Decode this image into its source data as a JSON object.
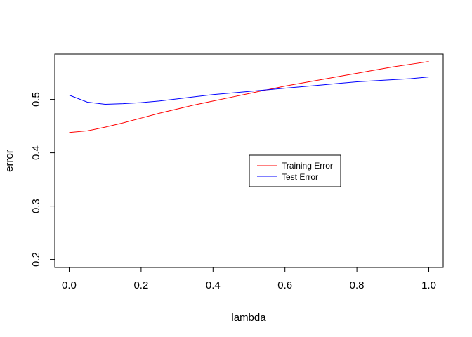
{
  "chart_data": {
    "type": "line",
    "title": "",
    "xlabel": "lambda",
    "ylabel": "error",
    "xlim": [
      -0.04,
      1.04
    ],
    "ylim": [
      0.185,
      0.585
    ],
    "x_ticks": [
      0.0,
      0.2,
      0.4,
      0.6,
      0.8,
      1.0
    ],
    "x_tick_labels": [
      "0.0",
      "0.2",
      "0.4",
      "0.6",
      "0.8",
      "1.0"
    ],
    "y_ticks": [
      0.2,
      0.3,
      0.4,
      0.5
    ],
    "y_tick_labels": [
      "0.2",
      "0.3",
      "0.4",
      "0.5"
    ],
    "grid": false,
    "legend_position": "center-right",
    "x": [
      0.0,
      0.05,
      0.1,
      0.15,
      0.2,
      0.25,
      0.3,
      0.35,
      0.4,
      0.45,
      0.5,
      0.55,
      0.6,
      0.65,
      0.7,
      0.75,
      0.8,
      0.85,
      0.9,
      0.95,
      1.0
    ],
    "series": [
      {
        "name": "Training Error",
        "color": "#ff0000",
        "values": [
          0.438,
          0.441,
          0.448,
          0.456,
          0.465,
          0.474,
          0.482,
          0.49,
          0.497,
          0.504,
          0.511,
          0.518,
          0.525,
          0.531,
          0.537,
          0.543,
          0.549,
          0.555,
          0.561,
          0.566,
          0.571
        ]
      },
      {
        "name": "Test Error",
        "color": "#0000ff",
        "values": [
          0.508,
          0.495,
          0.491,
          0.492,
          0.494,
          0.497,
          0.501,
          0.505,
          0.509,
          0.512,
          0.515,
          0.518,
          0.521,
          0.524,
          0.527,
          0.53,
          0.533,
          0.535,
          0.537,
          0.539,
          0.542
        ]
      }
    ]
  }
}
